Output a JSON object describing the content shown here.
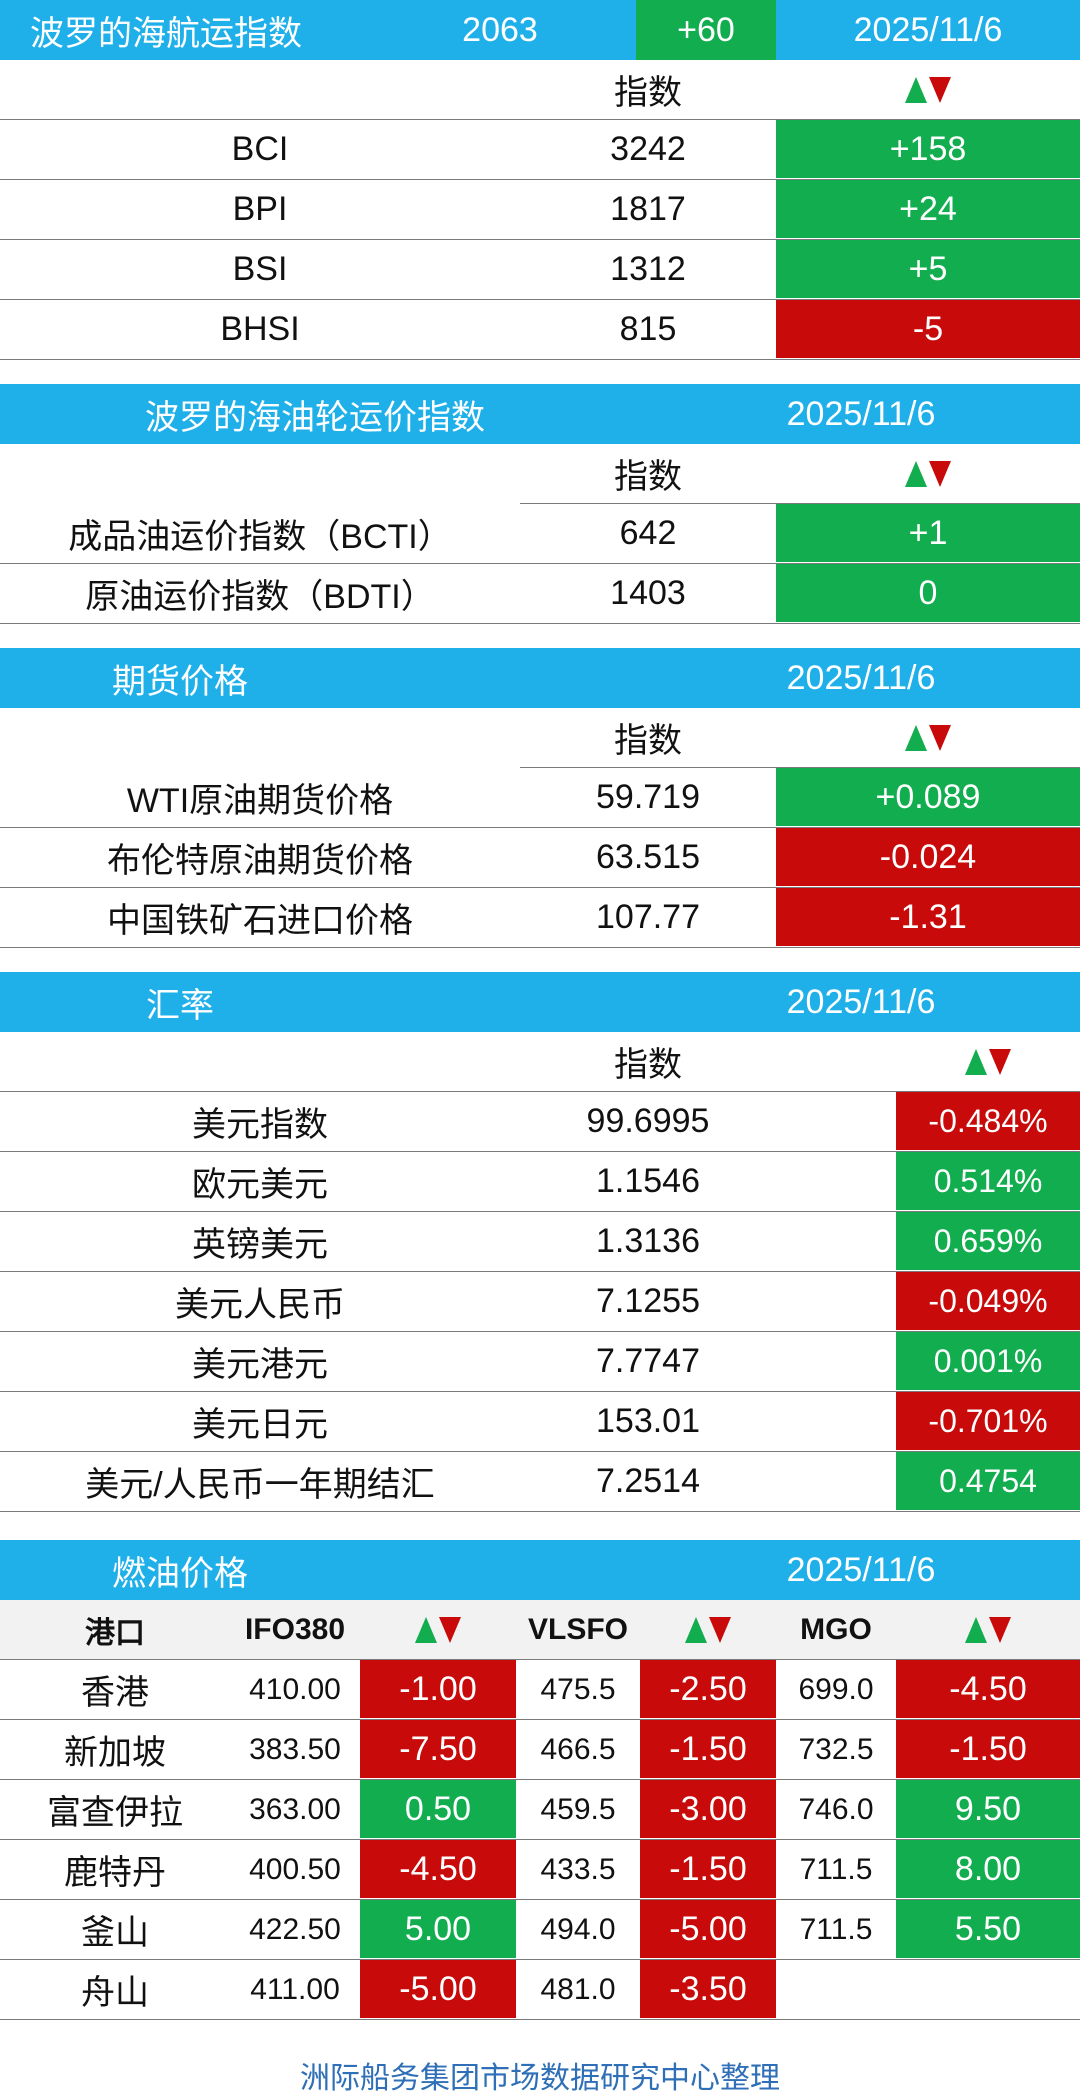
{
  "colors": {
    "header_blue": "#1fb0ea",
    "up_green": "#11ad4e",
    "down_red": "#c80a0a",
    "footer_text": "#2e6fb7"
  },
  "baltic": {
    "title": "波罗的海航运指数",
    "value": "2063",
    "change": "+60",
    "date": "2025/11/6",
    "col_index": "指数",
    "rows": [
      {
        "name": "BCI",
        "value": "3242",
        "change": "+158",
        "dir": "up"
      },
      {
        "name": "BPI",
        "value": "1817",
        "change": "+24",
        "dir": "up"
      },
      {
        "name": "BSI",
        "value": "1312",
        "change": "+5",
        "dir": "up"
      },
      {
        "name": "BHSI",
        "value": "815",
        "change": "-5",
        "dir": "down"
      }
    ]
  },
  "tanker": {
    "title": "波罗的海油轮运价指数",
    "date": "2025/11/6",
    "col_index": "指数",
    "rows": [
      {
        "name": "成品油运价指数（BCTI）",
        "value": "642",
        "change": "+1",
        "dir": "up"
      },
      {
        "name": "原油运价指数（BDTI）",
        "value": "1403",
        "change": "0",
        "dir": "up"
      }
    ]
  },
  "futures": {
    "title": "期货价格",
    "date": "2025/11/6",
    "col_index": "指数",
    "rows": [
      {
        "name": "WTI原油期货价格",
        "value": "59.719",
        "change": "+0.089",
        "dir": "up"
      },
      {
        "name": "布伦特原油期货价格",
        "value": "63.515",
        "change": "-0.024",
        "dir": "down"
      },
      {
        "name": "中国铁矿石进口价格",
        "value": "107.77",
        "change": "-1.31",
        "dir": "down"
      }
    ]
  },
  "fx": {
    "title": "汇率",
    "date": "2025/11/6",
    "col_index": "指数",
    "rows": [
      {
        "name": "美元指数",
        "value": "99.6995",
        "change": "-0.484%",
        "dir": "down"
      },
      {
        "name": "欧元美元",
        "value": "1.1546",
        "change": "0.514%",
        "dir": "up"
      },
      {
        "name": "英镑美元",
        "value": "1.3136",
        "change": "0.659%",
        "dir": "up"
      },
      {
        "name": "美元人民币",
        "value": "7.1255",
        "change": "-0.049%",
        "dir": "down"
      },
      {
        "name": "美元港元",
        "value": "7.7747",
        "change": "0.001%",
        "dir": "up"
      },
      {
        "name": "美元日元",
        "value": "153.01",
        "change": "-0.701%",
        "dir": "down"
      },
      {
        "name": "美元/人民币一年期结汇",
        "value": "7.2514",
        "change": "0.4754",
        "dir": "up"
      }
    ]
  },
  "fuel": {
    "title": "燃油价格",
    "date": "2025/11/6",
    "headers": {
      "port": "港口",
      "ifo": "IFO380",
      "vlsfo": "VLSFO",
      "mgo": "MGO"
    },
    "rows": [
      {
        "port": "香港",
        "ifo": "410.00",
        "ifo_chg": "-1.00",
        "ifo_dir": "down",
        "vlsfo": "475.5",
        "vlsfo_chg": "-2.50",
        "vlsfo_dir": "down",
        "mgo": "699.0",
        "mgo_chg": "-4.50",
        "mgo_dir": "down"
      },
      {
        "port": "新加坡",
        "ifo": "383.50",
        "ifo_chg": "-7.50",
        "ifo_dir": "down",
        "vlsfo": "466.5",
        "vlsfo_chg": "-1.50",
        "vlsfo_dir": "down",
        "mgo": "732.5",
        "mgo_chg": "-1.50",
        "mgo_dir": "down"
      },
      {
        "port": "富查伊拉",
        "ifo": "363.00",
        "ifo_chg": "0.50",
        "ifo_dir": "up",
        "vlsfo": "459.5",
        "vlsfo_chg": "-3.00",
        "vlsfo_dir": "down",
        "mgo": "746.0",
        "mgo_chg": "9.50",
        "mgo_dir": "up"
      },
      {
        "port": "鹿特丹",
        "ifo": "400.50",
        "ifo_chg": "-4.50",
        "ifo_dir": "down",
        "vlsfo": "433.5",
        "vlsfo_chg": "-1.50",
        "vlsfo_dir": "down",
        "mgo": "711.5",
        "mgo_chg": "8.00",
        "mgo_dir": "up"
      },
      {
        "port": "釜山",
        "ifo": "422.50",
        "ifo_chg": "5.00",
        "ifo_dir": "up",
        "vlsfo": "494.0",
        "vlsfo_chg": "-5.00",
        "vlsfo_dir": "down",
        "mgo": "711.5",
        "mgo_chg": "5.50",
        "mgo_dir": "up"
      },
      {
        "port": "舟山",
        "ifo": "411.00",
        "ifo_chg": "-5.00",
        "ifo_dir": "down",
        "vlsfo": "481.0",
        "vlsfo_chg": "-3.50",
        "vlsfo_dir": "down",
        "mgo": "",
        "mgo_chg": "",
        "mgo_dir": ""
      }
    ]
  },
  "footer": "洲际船务集团市场数据研究中心整理"
}
